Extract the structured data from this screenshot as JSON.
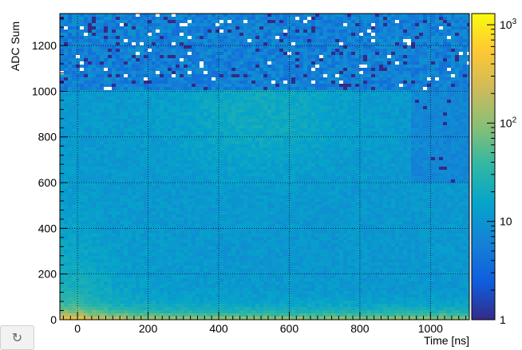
{
  "chart_data": {
    "type": "heatmap",
    "title": "",
    "xlabel": "Time [ns]",
    "ylabel": "ADC Sum",
    "xlim": [
      -50,
      1110
    ],
    "ylim": [
      0,
      1340
    ],
    "x_ticks": [
      0,
      200,
      400,
      600,
      800,
      1000
    ],
    "y_ticks": [
      0,
      200,
      400,
      600,
      800,
      1000,
      1200
    ],
    "grid": true,
    "colorbar": {
      "scale": "log",
      "range": [
        1,
        1300
      ],
      "ticks": [
        {
          "value": 1,
          "label": "1"
        },
        {
          "value": 10,
          "label": "10"
        },
        {
          "value": 100,
          "label": "10",
          "exponent": "2"
        },
        {
          "value": 1000,
          "label": "10",
          "exponent": "3"
        }
      ],
      "palette": [
        "#352a87",
        "#0f5cdd",
        "#1481d6",
        "#06a4ca",
        "#2eb7a4",
        "#87bf77",
        "#d1bb59",
        "#fec832",
        "#f9fb0e"
      ]
    }
  },
  "toolbar": {
    "redo_icon": "redo-icon"
  }
}
